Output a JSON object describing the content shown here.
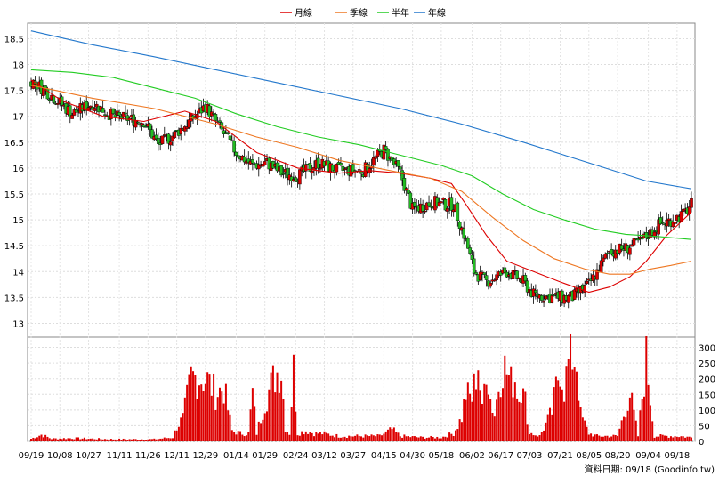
{
  "chart_data": {
    "type": "candlestick",
    "legend": [
      {
        "label": "月線",
        "color": "#dd0000"
      },
      {
        "label": "季線",
        "color": "#ee7722"
      },
      {
        "label": "半年",
        "color": "#22cc22"
      },
      {
        "label": "年線",
        "color": "#2277cc"
      }
    ],
    "price_axis": {
      "ticks": [
        "18.5",
        "18",
        "17.5",
        "17",
        "16.5",
        "16",
        "15.5",
        "15",
        "14.5",
        "14",
        "13.5",
        "13"
      ],
      "ylim": [
        12.75,
        18.8
      ]
    },
    "volume_axis": {
      "ticks": [
        "300",
        "250",
        "200",
        "150",
        "100",
        "50",
        "0"
      ],
      "ylim": [
        0,
        330
      ]
    },
    "x_labels": [
      "09/19",
      "10/08",
      "10/27",
      "11/11",
      "11/26",
      "12/11",
      "12/29",
      "01/14",
      "01/29",
      "02/24",
      "03/12",
      "03/27",
      "04/15",
      "04/30",
      "05/18",
      "06/02",
      "06/17",
      "07/03",
      "07/21",
      "08/05",
      "08/20",
      "09/04",
      "09/18"
    ],
    "up_color": "#dd0000",
    "down_color": "#22bb22",
    "volume_color": "#dd0000",
    "ma_lines": {
      "month": [
        [
          0,
          17.7
        ],
        [
          15,
          17.3
        ],
        [
          35,
          17.0
        ],
        [
          55,
          16.9
        ],
        [
          75,
          17.1
        ],
        [
          90,
          16.9
        ],
        [
          110,
          16.3
        ],
        [
          130,
          16.0
        ],
        [
          150,
          15.9
        ],
        [
          165,
          15.95
        ],
        [
          180,
          15.9
        ],
        [
          195,
          15.8
        ],
        [
          205,
          15.7
        ],
        [
          212,
          15.3
        ],
        [
          222,
          14.7
        ],
        [
          232,
          14.2
        ],
        [
          245,
          14.0
        ],
        [
          258,
          13.8
        ],
        [
          272,
          13.6
        ],
        [
          282,
          13.7
        ],
        [
          292,
          13.9
        ],
        [
          300,
          14.2
        ],
        [
          310,
          14.7
        ],
        [
          322,
          15.15
        ]
      ],
      "quarter": [
        [
          0,
          17.6
        ],
        [
          30,
          17.35
        ],
        [
          60,
          17.15
        ],
        [
          90,
          16.85
        ],
        [
          110,
          16.6
        ],
        [
          130,
          16.4
        ],
        [
          150,
          16.15
        ],
        [
          175,
          15.95
        ],
        [
          195,
          15.8
        ],
        [
          210,
          15.55
        ],
        [
          225,
          15.05
        ],
        [
          240,
          14.6
        ],
        [
          255,
          14.25
        ],
        [
          270,
          14.05
        ],
        [
          282,
          13.95
        ],
        [
          292,
          13.95
        ],
        [
          302,
          14.05
        ],
        [
          312,
          14.12
        ],
        [
          322,
          14.2
        ]
      ],
      "half": [
        [
          0,
          17.9
        ],
        [
          20,
          17.85
        ],
        [
          40,
          17.75
        ],
        [
          60,
          17.55
        ],
        [
          80,
          17.35
        ],
        [
          100,
          17.05
        ],
        [
          120,
          16.8
        ],
        [
          140,
          16.6
        ],
        [
          160,
          16.45
        ],
        [
          180,
          16.25
        ],
        [
          200,
          16.05
        ],
        [
          215,
          15.85
        ],
        [
          230,
          15.5
        ],
        [
          245,
          15.2
        ],
        [
          260,
          15.0
        ],
        [
          275,
          14.82
        ],
        [
          290,
          14.72
        ],
        [
          305,
          14.68
        ],
        [
          322,
          14.62
        ]
      ],
      "year": [
        [
          0,
          18.65
        ],
        [
          30,
          18.38
        ],
        [
          60,
          18.15
        ],
        [
          90,
          17.9
        ],
        [
          120,
          17.65
        ],
        [
          150,
          17.4
        ],
        [
          180,
          17.15
        ],
        [
          210,
          16.85
        ],
        [
          240,
          16.5
        ],
        [
          260,
          16.25
        ],
        [
          280,
          16.0
        ],
        [
          300,
          15.75
        ],
        [
          322,
          15.6
        ]
      ]
    },
    "date_anchors": [
      [
        0,
        "09/19"
      ],
      [
        14,
        "10/08"
      ],
      [
        28,
        "10/27"
      ],
      [
        43,
        "11/11"
      ],
      [
        57,
        "11/26"
      ],
      [
        71,
        "12/11"
      ],
      [
        85,
        "12/29"
      ],
      [
        100,
        "01/14"
      ],
      [
        114,
        "01/29"
      ],
      [
        129,
        "02/24"
      ],
      [
        143,
        "03/12"
      ],
      [
        157,
        "03/27"
      ],
      [
        172,
        "04/15"
      ],
      [
        186,
        "04/30"
      ],
      [
        200,
        "05/18"
      ],
      [
        215,
        "06/02"
      ],
      [
        229,
        "06/17"
      ],
      [
        243,
        "07/03"
      ],
      [
        258,
        "07/21"
      ],
      [
        272,
        "08/05"
      ],
      [
        286,
        "08/20"
      ],
      [
        301,
        "09/04"
      ],
      [
        315,
        "09/18"
      ]
    ],
    "price_anchors": [
      [
        0,
        17.7
      ],
      [
        10,
        17.4
      ],
      [
        20,
        17.05
      ],
      [
        30,
        17.25
      ],
      [
        40,
        17.0
      ],
      [
        55,
        16.9
      ],
      [
        62,
        16.45
      ],
      [
        70,
        16.65
      ],
      [
        80,
        17.0
      ],
      [
        85,
        17.2
      ],
      [
        90,
        16.9
      ],
      [
        100,
        16.3
      ],
      [
        108,
        16.05
      ],
      [
        115,
        16.1
      ],
      [
        122,
        15.9
      ],
      [
        130,
        15.85
      ],
      [
        140,
        16.1
      ],
      [
        150,
        15.95
      ],
      [
        162,
        15.95
      ],
      [
        172,
        16.35
      ],
      [
        180,
        15.9
      ],
      [
        186,
        15.2
      ],
      [
        196,
        15.35
      ],
      [
        200,
        15.3
      ],
      [
        206,
        15.3
      ],
      [
        212,
        14.6
      ],
      [
        216,
        14.0
      ],
      [
        222,
        13.8
      ],
      [
        232,
        14.0
      ],
      [
        240,
        13.8
      ],
      [
        245,
        13.55
      ],
      [
        255,
        13.5
      ],
      [
        264,
        13.5
      ],
      [
        272,
        13.75
      ],
      [
        276,
        14.0
      ],
      [
        282,
        14.4
      ],
      [
        290,
        14.45
      ],
      [
        298,
        14.6
      ],
      [
        306,
        14.9
      ],
      [
        312,
        15.0
      ],
      [
        318,
        15.1
      ],
      [
        322,
        15.3
      ]
    ],
    "volume_anchors": [
      [
        0,
        10
      ],
      [
        5,
        25
      ],
      [
        10,
        10
      ],
      [
        20,
        12
      ],
      [
        30,
        10
      ],
      [
        40,
        8
      ],
      [
        50,
        8
      ],
      [
        60,
        8
      ],
      [
        69,
        15
      ],
      [
        71,
        55
      ],
      [
        74,
        85
      ],
      [
        78,
        240
      ],
      [
        82,
        240
      ],
      [
        86,
        230
      ],
      [
        90,
        180
      ],
      [
        94,
        200
      ],
      [
        98,
        40
      ],
      [
        102,
        30
      ],
      [
        106,
        30
      ],
      [
        108,
        180
      ],
      [
        110,
        30
      ],
      [
        114,
        150
      ],
      [
        118,
        230
      ],
      [
        120,
        260
      ],
      [
        122,
        270
      ],
      [
        124,
        50
      ],
      [
        126,
        30
      ],
      [
        128,
        270
      ],
      [
        130,
        30
      ],
      [
        134,
        40
      ],
      [
        138,
        30
      ],
      [
        142,
        30
      ],
      [
        150,
        20
      ],
      [
        160,
        20
      ],
      [
        170,
        20
      ],
      [
        176,
        45
      ],
      [
        180,
        20
      ],
      [
        190,
        15
      ],
      [
        200,
        15
      ],
      [
        206,
        30
      ],
      [
        210,
        90
      ],
      [
        212,
        180
      ],
      [
        215,
        160
      ],
      [
        218,
        300
      ],
      [
        220,
        110
      ],
      [
        222,
        300
      ],
      [
        224,
        160
      ],
      [
        226,
        100
      ],
      [
        228,
        210
      ],
      [
        230,
        290
      ],
      [
        232,
        260
      ],
      [
        234,
        220
      ],
      [
        236,
        240
      ],
      [
        238,
        160
      ],
      [
        240,
        270
      ],
      [
        242,
        50
      ],
      [
        244,
        30
      ],
      [
        248,
        20
      ],
      [
        254,
        110
      ],
      [
        258,
        290
      ],
      [
        260,
        200
      ],
      [
        262,
        290
      ],
      [
        264,
        320
      ],
      [
        266,
        300
      ],
      [
        268,
        100
      ],
      [
        272,
        30
      ],
      [
        276,
        20
      ],
      [
        280,
        20
      ],
      [
        286,
        20
      ],
      [
        292,
        180
      ],
      [
        296,
        20
      ],
      [
        300,
        310
      ],
      [
        304,
        20
      ],
      [
        310,
        20
      ],
      [
        316,
        20
      ],
      [
        322,
        15
      ]
    ]
  },
  "footer": {
    "date_text": "資料日期: 09/18 (Goodinfo.tw)"
  }
}
